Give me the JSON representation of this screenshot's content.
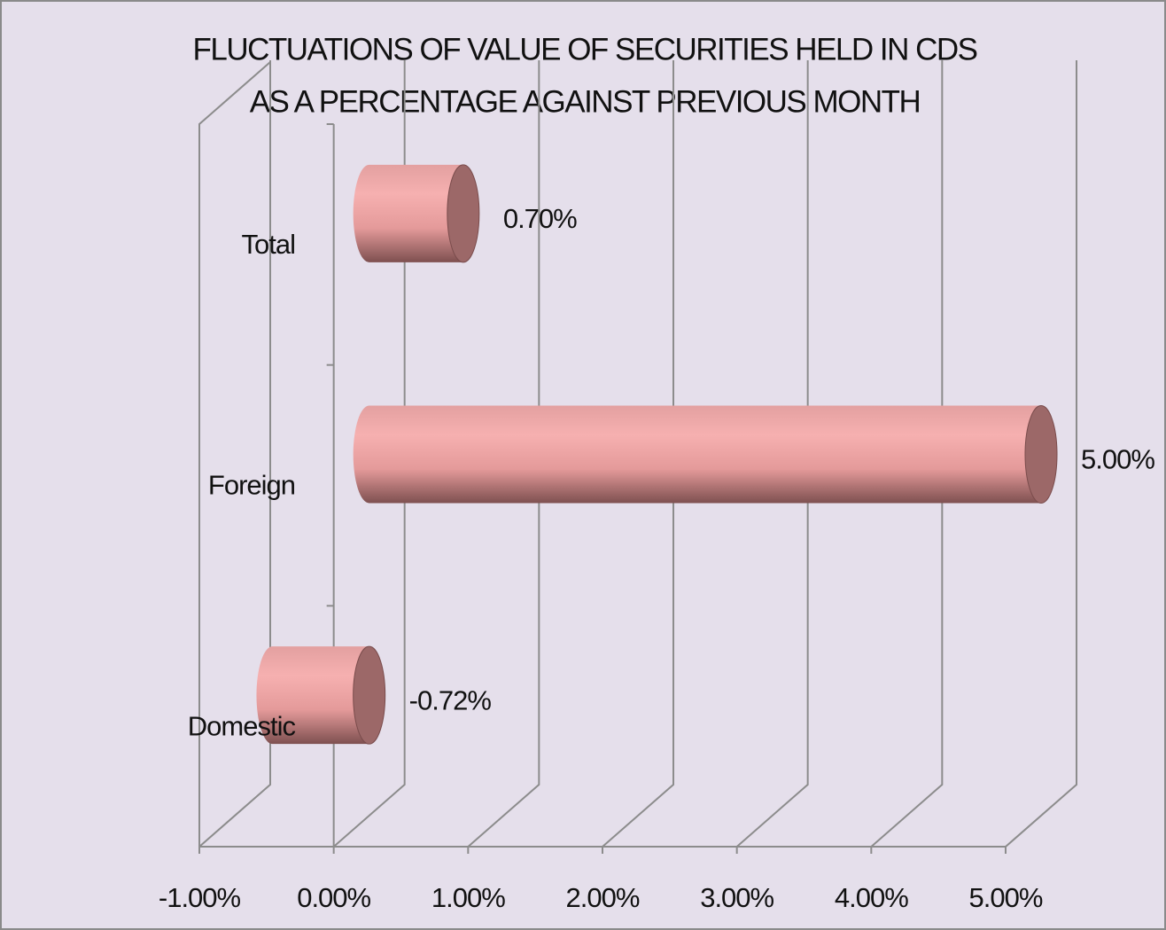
{
  "chart_data": {
    "type": "bar",
    "orientation": "horizontal",
    "style": "3d-cylinder",
    "title": [
      "FLUCTUATIONS OF  VALUE OF SECURITIES HELD IN CDS",
      "AS A PERCENTAGE AGAINST PREVIOUS MONTH"
    ],
    "categories": [
      "Total",
      "Foreign",
      "Domestic"
    ],
    "values": [
      0.7,
      5.0,
      -0.72
    ],
    "value_labels": [
      "0.70%",
      "5.00%",
      "-0.72%"
    ],
    "color": "#f0a4a4",
    "xlim": [
      -1,
      5
    ],
    "xticks": [
      {
        "value": -1,
        "label": "-1.00%"
      },
      {
        "value": 0,
        "label": "0.00%"
      },
      {
        "value": 1,
        "label": "1.00%"
      },
      {
        "value": 2,
        "label": "2.00%"
      },
      {
        "value": 3,
        "label": "3.00%"
      },
      {
        "value": 4,
        "label": "4.00%"
      },
      {
        "value": 5,
        "label": "5.00%"
      }
    ],
    "grid": true
  }
}
